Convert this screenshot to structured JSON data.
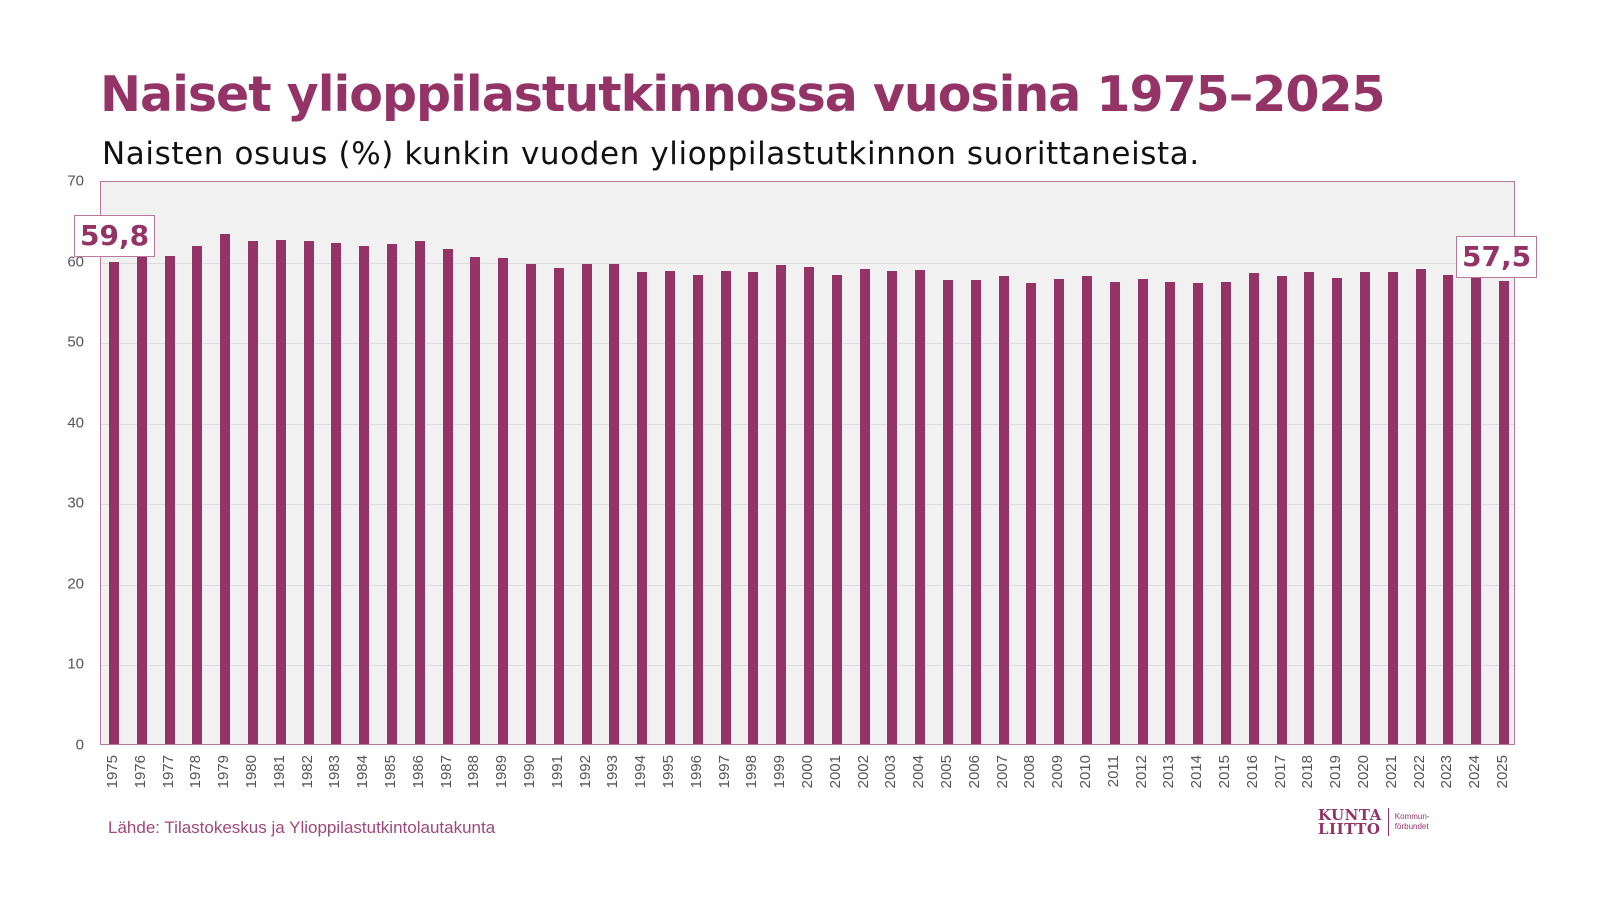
{
  "header": {
    "title": "Naiset ylioppilastutkinnossa vuosina 1975–2025",
    "subtitle": "Naisten osuus (%) kunkin vuoden ylioppilastutkinnon suorittaneista."
  },
  "callouts": {
    "first": "59,8",
    "last": "57,5"
  },
  "footer": {
    "source": "Lähde: Tilastokeskus ja Ylioppilastutkintolautakunta",
    "logo_line1": "KUNTA",
    "logo_line2": "LIITTO",
    "logo_sub1": "Kommun-",
    "logo_sub2": "förbundet"
  },
  "colors": {
    "bar": "#943466",
    "plot_bg": "#f1f1f1",
    "border": "#b77a9c"
  },
  "chart_data": {
    "type": "bar",
    "title": "Naiset ylioppilastutkinnossa vuosina 1975–2025",
    "subtitle": "Naisten osuus (%) kunkin vuoden ylioppilastutkinnon suorittaneista.",
    "xlabel": "",
    "ylabel": "",
    "ylim": [
      0,
      70
    ],
    "yticks": [
      0,
      10,
      20,
      30,
      40,
      50,
      60,
      70
    ],
    "grid": true,
    "legend": null,
    "annotations": [
      {
        "x": "1975",
        "label": "59,8"
      },
      {
        "x": "2025",
        "label": "57,5"
      }
    ],
    "categories": [
      "1975",
      "1976",
      "1977",
      "1978",
      "1979",
      "1980",
      "1981",
      "1982",
      "1983",
      "1984",
      "1985",
      "1986",
      "1987",
      "1988",
      "1989",
      "1990",
      "1991",
      "1992",
      "1993",
      "1994",
      "1995",
      "1996",
      "1997",
      "1998",
      "1999",
      "2000",
      "2001",
      "2002",
      "2003",
      "2004",
      "2005",
      "2006",
      "2007",
      "2008",
      "2009",
      "2010",
      "2011",
      "2012",
      "2013",
      "2014",
      "2015",
      "2016",
      "2017",
      "2018",
      "2019",
      "2020",
      "2021",
      "2022",
      "2023",
      "2024",
      "2025"
    ],
    "values": [
      59.8,
      60.5,
      60.6,
      61.8,
      63.3,
      62.4,
      62.6,
      62.4,
      62.2,
      61.8,
      62.0,
      62.4,
      61.4,
      60.5,
      60.3,
      59.6,
      59.1,
      59.6,
      59.6,
      58.6,
      58.7,
      58.2,
      58.7,
      58.6,
      59.4,
      59.2,
      58.2,
      58.9,
      58.7,
      58.8,
      57.6,
      57.6,
      58.1,
      57.2,
      57.7,
      58.1,
      57.4,
      57.7,
      57.4,
      57.2,
      57.4,
      58.4,
      58.1,
      58.6,
      57.9,
      58.6,
      58.6,
      58.9,
      58.2,
      57.9,
      57.5
    ]
  }
}
